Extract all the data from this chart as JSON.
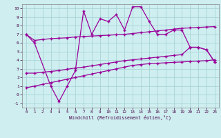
{
  "xlabel": "Windchill (Refroidissement éolien,°C)",
  "bg_color": "#ceeef0",
  "grid_color": "#aad4d8",
  "line_color": "#990099",
  "xlim": [
    -0.5,
    23.5
  ],
  "ylim": [
    -1.5,
    10.5
  ],
  "xticks": [
    0,
    1,
    2,
    3,
    4,
    5,
    6,
    7,
    8,
    9,
    10,
    11,
    12,
    13,
    14,
    15,
    16,
    17,
    18,
    19,
    20,
    21,
    22,
    23
  ],
  "yticks": [
    -1,
    0,
    1,
    2,
    3,
    4,
    5,
    6,
    7,
    8,
    9,
    10
  ],
  "line1_x": [
    0,
    1,
    3,
    4,
    5,
    6,
    7,
    8,
    9,
    10,
    11,
    12,
    13,
    14,
    15,
    16,
    17,
    18,
    19,
    20,
    21,
    22,
    23
  ],
  "line1_y": [
    7.0,
    6.0,
    1.0,
    -0.8,
    1.0,
    2.8,
    9.7,
    7.0,
    8.8,
    8.5,
    9.3,
    7.5,
    10.2,
    10.2,
    8.5,
    7.0,
    7.0,
    7.5,
    7.5,
    5.5,
    5.5,
    5.2,
    3.8
  ],
  "line2_x": [
    0,
    1,
    2,
    3,
    4,
    5,
    6,
    7,
    8,
    9,
    10,
    11,
    12,
    13,
    14,
    15,
    16,
    17,
    18,
    19,
    20,
    21,
    22,
    23
  ],
  "line2_y": [
    7.0,
    6.3,
    6.4,
    6.5,
    6.55,
    6.6,
    6.7,
    6.75,
    6.8,
    6.85,
    6.9,
    6.95,
    7.0,
    7.1,
    7.2,
    7.3,
    7.4,
    7.5,
    7.6,
    7.7,
    7.75,
    7.8,
    7.85,
    7.9
  ],
  "line3_x": [
    0,
    1,
    2,
    3,
    4,
    5,
    6,
    7,
    8,
    9,
    10,
    11,
    12,
    13,
    14,
    15,
    16,
    17,
    18,
    19,
    20,
    21,
    22,
    23
  ],
  "line3_y": [
    2.5,
    2.5,
    2.6,
    2.7,
    2.8,
    2.95,
    3.1,
    3.2,
    3.35,
    3.5,
    3.65,
    3.8,
    3.95,
    4.05,
    4.15,
    4.25,
    4.35,
    4.45,
    4.55,
    4.65,
    5.5,
    5.5,
    5.2,
    3.8
  ],
  "line4_x": [
    0,
    1,
    2,
    3,
    4,
    5,
    6,
    7,
    8,
    9,
    10,
    11,
    12,
    13,
    14,
    15,
    16,
    17,
    18,
    19,
    20,
    21,
    22,
    23
  ],
  "line4_y": [
    0.8,
    1.0,
    1.2,
    1.4,
    1.6,
    1.8,
    2.0,
    2.2,
    2.4,
    2.6,
    2.8,
    3.0,
    3.2,
    3.4,
    3.5,
    3.6,
    3.65,
    3.7,
    3.75,
    3.8,
    3.85,
    3.9,
    3.95,
    4.05
  ]
}
